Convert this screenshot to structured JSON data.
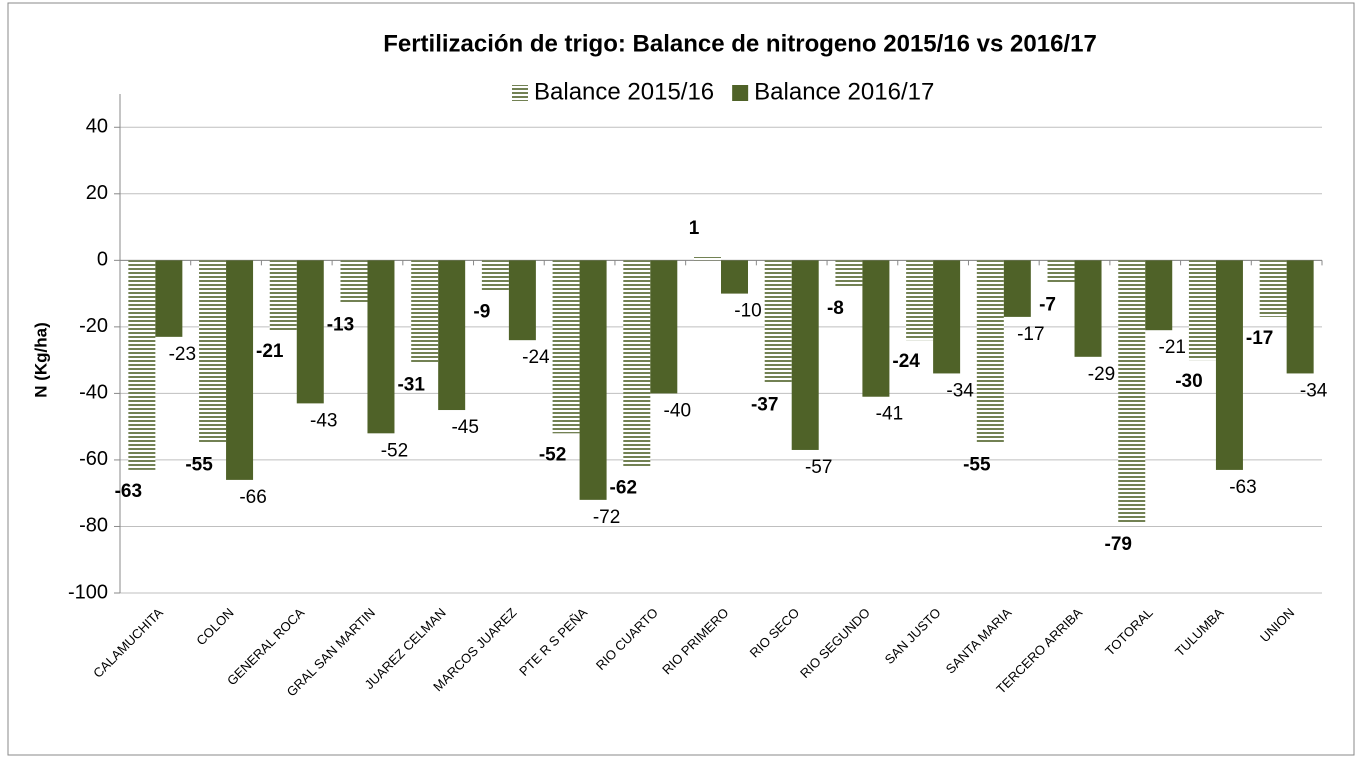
{
  "chart_data": {
    "type": "bar",
    "title": "Fertilización de trigo: Balance de nitrogeno 2015/16 vs 2016/17",
    "y_label": "N (Kg/ha)",
    "categories": [
      "CALAMUCHITA",
      "COLON",
      "GENERAL ROCA",
      "GRAL SAN MARTIN",
      "JUAREZ CELMAN",
      "MARCOS JUAREZ",
      "PTE R S PEÑA",
      "RIO CUARTO",
      "RIO PRIMERO",
      "RIO SECO",
      "RIO SEGUNDO",
      "SAN JUSTO",
      "SANTA MARIA",
      "TERCERO ARRIBA",
      "TOTORAL",
      "TULUMBA",
      "UNION"
    ],
    "series": [
      {
        "name": "Balance 2015/16",
        "color": "#4f6228",
        "pattern": "horizontal-stripes",
        "values": [
          -63,
          -55,
          -21,
          -13,
          -31,
          -9,
          -52,
          -62,
          1,
          -37,
          -8,
          -24,
          -55,
          -7,
          -79,
          -30,
          -17
        ]
      },
      {
        "name": "Balance 2016/17",
        "color": "#4f6228",
        "values": [
          -23,
          -66,
          -43,
          -52,
          -45,
          -24,
          -72,
          -40,
          -10,
          -57,
          -41,
          -34,
          -17,
          -29,
          -21,
          -63,
          -34
        ]
      }
    ],
    "ylim": [
      -100,
      50
    ],
    "yticks": [
      -100,
      -80,
      -60,
      -40,
      -20,
      0,
      20,
      40
    ],
    "grid": true,
    "legend": "top"
  }
}
